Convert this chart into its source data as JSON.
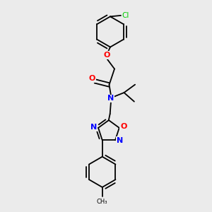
{
  "background_color": "#ebebeb",
  "bond_color": "#000000",
  "atom_colors": {
    "O": "#ff0000",
    "N": "#0000ff",
    "Cl": "#00cc00",
    "C": "#000000"
  },
  "figsize": [
    3.0,
    3.0
  ],
  "dpi": 100,
  "xlim": [
    0,
    10
  ],
  "ylim": [
    0,
    10
  ]
}
